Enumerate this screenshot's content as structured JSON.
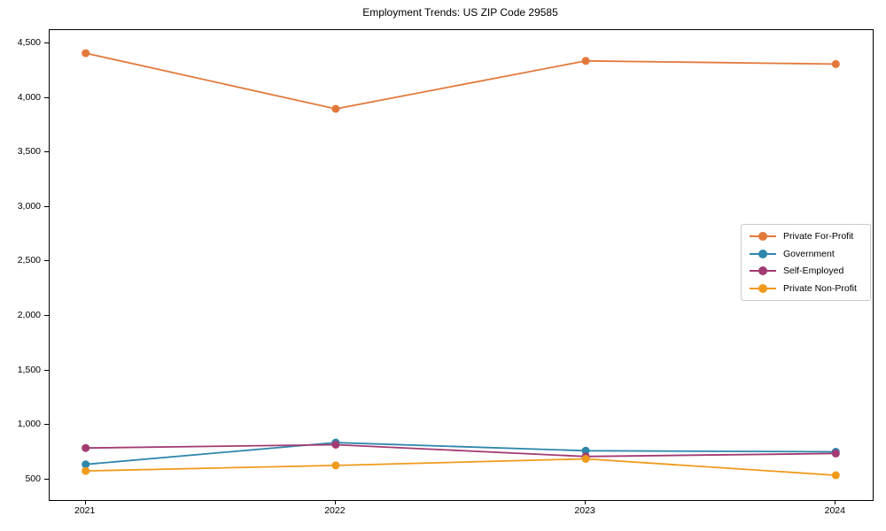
{
  "chart_data": {
    "type": "line",
    "title": "Employment Trends: US ZIP Code 29585",
    "x": [
      2021,
      2022,
      2023,
      2024
    ],
    "x_labels": [
      "2021",
      "2022",
      "2023",
      "2024"
    ],
    "series": [
      {
        "name": "Private For-Profit",
        "color": "#E2793B",
        "values": [
          4410,
          3900,
          4340,
          4310
        ]
      },
      {
        "name": "Government",
        "color": "#2E86AB",
        "values": [
          640,
          840,
          765,
          755
        ]
      },
      {
        "name": "Self-Employed",
        "color": "#A23B72",
        "values": [
          790,
          820,
          712,
          740
        ]
      },
      {
        "name": "Private Non-Profit",
        "color": "#F09A1C",
        "values": [
          580,
          630,
          690,
          540
        ]
      }
    ],
    "yticks": [
      500,
      1000,
      1500,
      2000,
      2500,
      3000,
      3500,
      4000,
      4500
    ],
    "ytick_labels": [
      "500",
      "1,000",
      "1,500",
      "2,000",
      "2,500",
      "3,000",
      "3,500",
      "4,000",
      "4,500"
    ],
    "ylim": [
      313,
      4622
    ],
    "grid": false,
    "legend_position": "center right",
    "xlabel": "",
    "ylabel": ""
  }
}
